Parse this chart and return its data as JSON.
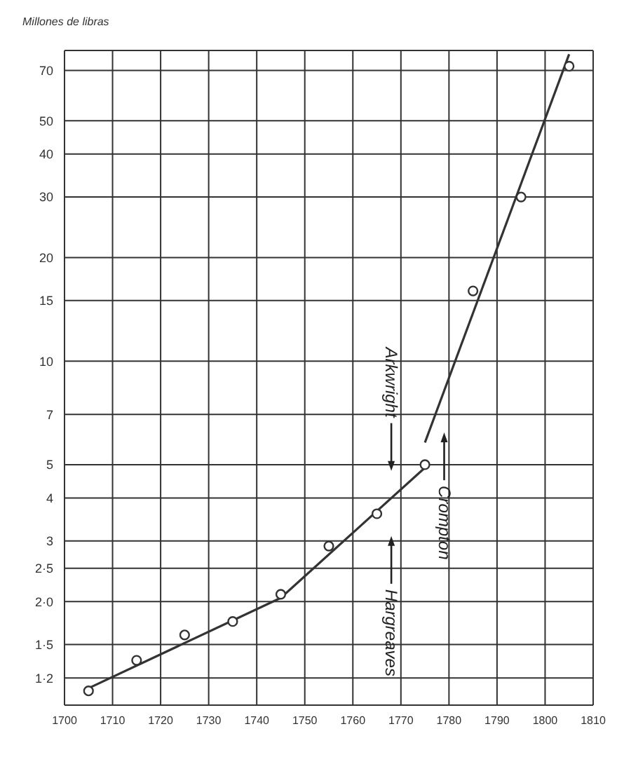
{
  "chart_data": {
    "type": "scatter",
    "ylabel": "Millones de libras",
    "log": "y",
    "grid": true,
    "legend": false,
    "xlim": [
      1700,
      1810
    ],
    "xticks": [
      1700,
      1710,
      1720,
      1730,
      1740,
      1750,
      1760,
      1770,
      1780,
      1790,
      1800,
      1810
    ],
    "ylim": [
      1,
      80
    ],
    "yticks": [
      {
        "value": 1.2,
        "label": "1·2"
      },
      {
        "value": 1.5,
        "label": "1·5"
      },
      {
        "value": 2,
        "label": "2·0"
      },
      {
        "value": 2.5,
        "label": "2·5"
      },
      3,
      4,
      5,
      7,
      10,
      15,
      20,
      30,
      40,
      50,
      70
    ],
    "series": [
      {
        "marker": "circle",
        "color": "#333333",
        "x": [
          1705,
          1715,
          1725,
          1735,
          1745,
          1755,
          1765,
          1775,
          1785,
          1795,
          1805
        ],
        "values": [
          1.1,
          1.35,
          1.6,
          1.75,
          2.1,
          2.9,
          3.6,
          5,
          16,
          30,
          72
        ]
      },
      {
        "type": "line",
        "marker": "none",
        "color": "#333333",
        "x": [
          1705,
          1745,
          1775
        ],
        "values": [
          1.12,
          2.05,
          4.9
        ]
      },
      {
        "type": "line",
        "marker": "none",
        "color": "#333333",
        "x": [
          1775,
          1805
        ],
        "values": [
          5.8,
          78
        ]
      }
    ],
    "annotations": [
      "Arkwright",
      "Hargreaves",
      "Crompton"
    ]
  }
}
